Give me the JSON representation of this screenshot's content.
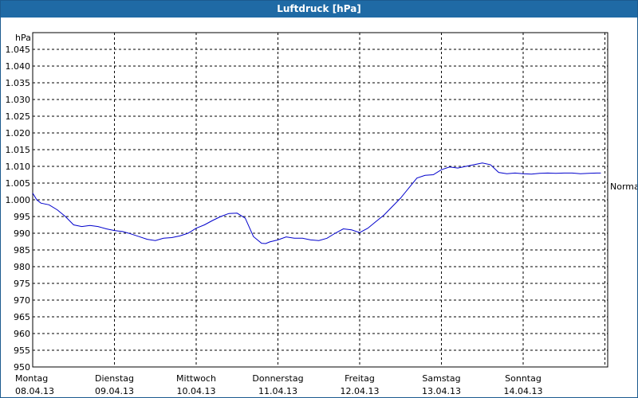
{
  "chart_data": {
    "type": "line",
    "title": "Luftdruck [hPa]",
    "ylabel": "hPa",
    "ylim": [
      950,
      1050
    ],
    "y_ticks": [
      "950",
      "955",
      "960",
      "965",
      "970",
      "975",
      "980",
      "985",
      "990",
      "995",
      "1.000",
      "1.005",
      "1.010",
      "1.015",
      "1.020",
      "1.025",
      "1.030",
      "1.035",
      "1.040",
      "1.045"
    ],
    "y_tick_values": [
      950,
      955,
      960,
      965,
      970,
      975,
      980,
      985,
      990,
      995,
      1000,
      1005,
      1010,
      1015,
      1020,
      1025,
      1030,
      1035,
      1040,
      1045
    ],
    "x_ticks": [
      {
        "day": "Montag",
        "date": "08.04.13"
      },
      {
        "day": "Dienstag",
        "date": "09.04.13"
      },
      {
        "day": "Mittwoch",
        "date": "10.04.13"
      },
      {
        "day": "Donnerstag",
        "date": "11.04.13"
      },
      {
        "day": "Freitag",
        "date": "12.04.13"
      },
      {
        "day": "Samstag",
        "date": "13.04.13"
      },
      {
        "day": "Sonntag",
        "date": "14.04.13"
      }
    ],
    "xlim_days": [
      0,
      7
    ],
    "grid": true,
    "annotation": "Normal",
    "line_color": "#0000cc",
    "series": [
      {
        "x": [
          0,
          0.05,
          0.1,
          0.2,
          0.3,
          0.4,
          0.5,
          0.6,
          0.7,
          0.8,
          0.9,
          1.0,
          1.1,
          1.2,
          1.3,
          1.4,
          1.5,
          1.6,
          1.7,
          1.8,
          1.9,
          2.0,
          2.1,
          2.2,
          2.3,
          2.4,
          2.5,
          2.6,
          2.7,
          2.8,
          2.85,
          2.9,
          3.0,
          3.1,
          3.2,
          3.3,
          3.4,
          3.5,
          3.6,
          3.7,
          3.8,
          3.9,
          4.0,
          4.1,
          4.2,
          4.3,
          4.4,
          4.5,
          4.6,
          4.7,
          4.8,
          4.9,
          5.0,
          5.1,
          5.2,
          5.3,
          5.4,
          5.5,
          5.6,
          5.7,
          5.8,
          5.9,
          6.0,
          6.1,
          6.2,
          6.3,
          6.4,
          6.5,
          6.6,
          6.7,
          6.8,
          6.9,
          6.95
        ],
        "values": [
          1002,
          1000,
          999,
          998.5,
          997,
          995,
          992.5,
          992,
          992.3,
          992,
          991.3,
          990.8,
          990.5,
          989.8,
          989,
          988.2,
          987.8,
          988.5,
          988.7,
          989.2,
          990,
          991.5,
          992.5,
          993.8,
          995,
          995.9,
          996,
          994.5,
          989,
          987,
          986.9,
          987.4,
          988,
          988.9,
          988.5,
          988.5,
          988,
          987.8,
          988.5,
          990,
          991.3,
          991,
          990.2,
          991.5,
          993.5,
          995.5,
          998,
          1000.5,
          1003.5,
          1006.5,
          1007.3,
          1007.5,
          1009,
          1009.8,
          1009.5,
          1010,
          1010.5,
          1011,
          1010.5,
          1008.2,
          1007.8,
          1008,
          1007.8,
          1007.7,
          1007.9,
          1008,
          1007.9,
          1008,
          1008,
          1007.8,
          1007.9,
          1008,
          1008
        ]
      }
    ]
  }
}
